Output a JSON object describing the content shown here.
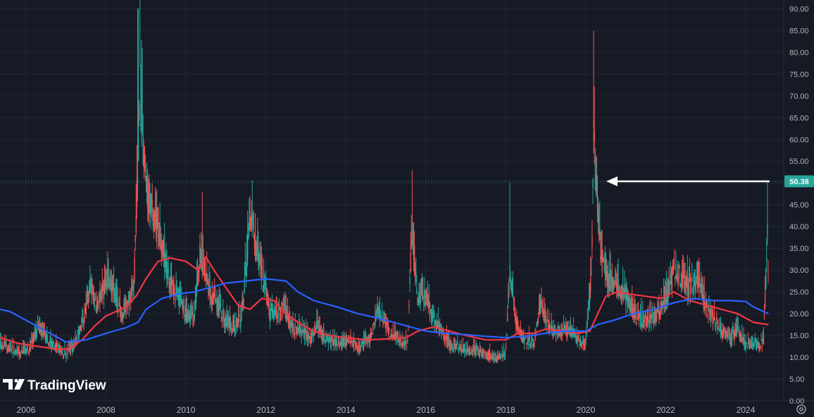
{
  "chart_data": {
    "type": "candlestick",
    "x_ticks": [
      "2006",
      "2008",
      "2010",
      "2012",
      "2014",
      "2016",
      "2018",
      "2020",
      "2022",
      "2024"
    ],
    "y_ticks": [
      "0.00",
      "5.00",
      "10.00",
      "15.00",
      "20.00",
      "25.00",
      "30.00",
      "35.00",
      "40.00",
      "45.00",
      "50.00",
      "55.00",
      "60.00",
      "65.00",
      "70.00",
      "75.00",
      "80.00",
      "85.00",
      "90.00"
    ],
    "ylim": [
      0,
      92
    ],
    "xlim": [
      2005.35,
      2024.95
    ],
    "last_price": 50.38,
    "last_price_label": "50.38",
    "colors": {
      "background": "#161a25",
      "grid": "#232734",
      "up": "#26a69a",
      "down": "#ef5350",
      "ma_fast": "#f23645",
      "ma_slow": "#2962ff",
      "price_label": "#26a69a",
      "arrow": "#ffffff"
    },
    "price_path": [
      [
        2005.35,
        13
      ],
      [
        2005.6,
        12
      ],
      [
        2005.8,
        11
      ],
      [
        2006.1,
        12
      ],
      [
        2006.35,
        17
      ],
      [
        2006.5,
        14
      ],
      [
        2006.8,
        12
      ],
      [
        2007.0,
        10.5
      ],
      [
        2007.15,
        12
      ],
      [
        2007.3,
        15
      ],
      [
        2007.45,
        19
      ],
      [
        2007.6,
        26
      ],
      [
        2007.75,
        22
      ],
      [
        2007.9,
        24
      ],
      [
        2008.05,
        29
      ],
      [
        2008.2,
        25
      ],
      [
        2008.4,
        20
      ],
      [
        2008.55,
        22
      ],
      [
        2008.7,
        26
      ],
      [
        2008.8,
        55
      ],
      [
        2008.85,
        78
      ],
      [
        2008.92,
        60
      ],
      [
        2009.0,
        50
      ],
      [
        2009.1,
        45
      ],
      [
        2009.25,
        42
      ],
      [
        2009.45,
        33
      ],
      [
        2009.6,
        27
      ],
      [
        2009.8,
        24
      ],
      [
        2010.0,
        20
      ],
      [
        2010.2,
        19
      ],
      [
        2010.35,
        34
      ],
      [
        2010.45,
        30
      ],
      [
        2010.6,
        24
      ],
      [
        2010.8,
        22
      ],
      [
        2011.0,
        18
      ],
      [
        2011.2,
        17
      ],
      [
        2011.4,
        19
      ],
      [
        2011.6,
        42
      ],
      [
        2011.75,
        36
      ],
      [
        2011.9,
        30
      ],
      [
        2012.1,
        20
      ],
      [
        2012.3,
        19
      ],
      [
        2012.45,
        21
      ],
      [
        2012.7,
        16
      ],
      [
        2012.9,
        16
      ],
      [
        2013.1,
        14
      ],
      [
        2013.3,
        17
      ],
      [
        2013.5,
        14
      ],
      [
        2013.8,
        13
      ],
      [
        2014.1,
        14
      ],
      [
        2014.3,
        12
      ],
      [
        2014.6,
        14
      ],
      [
        2014.8,
        21
      ],
      [
        2015.0,
        17
      ],
      [
        2015.3,
        14
      ],
      [
        2015.55,
        13
      ],
      [
        2015.65,
        40
      ],
      [
        2015.8,
        24
      ],
      [
        2016.0,
        24
      ],
      [
        2016.15,
        19
      ],
      [
        2016.4,
        16
      ],
      [
        2016.6,
        13
      ],
      [
        2016.9,
        12
      ],
      [
        2017.2,
        11.5
      ],
      [
        2017.5,
        10.5
      ],
      [
        2017.8,
        10
      ],
      [
        2018.0,
        11
      ],
      [
        2018.1,
        30
      ],
      [
        2018.25,
        18
      ],
      [
        2018.45,
        14
      ],
      [
        2018.7,
        13
      ],
      [
        2018.85,
        22
      ],
      [
        2019.0,
        19
      ],
      [
        2019.2,
        15
      ],
      [
        2019.45,
        16
      ],
      [
        2019.65,
        16
      ],
      [
        2019.85,
        13
      ],
      [
        2020.0,
        13
      ],
      [
        2020.15,
        30
      ],
      [
        2020.2,
        65
      ],
      [
        2020.28,
        45
      ],
      [
        2020.4,
        32
      ],
      [
        2020.55,
        28
      ],
      [
        2020.75,
        27
      ],
      [
        2020.9,
        25
      ],
      [
        2021.1,
        22
      ],
      [
        2021.3,
        19
      ],
      [
        2021.55,
        18
      ],
      [
        2021.8,
        20
      ],
      [
        2022.0,
        23
      ],
      [
        2022.2,
        30
      ],
      [
        2022.4,
        28
      ],
      [
        2022.6,
        26
      ],
      [
        2022.8,
        28
      ],
      [
        2023.0,
        21
      ],
      [
        2023.2,
        19
      ],
      [
        2023.4,
        16
      ],
      [
        2023.6,
        14
      ],
      [
        2023.8,
        16
      ],
      [
        2024.0,
        13
      ],
      [
        2024.2,
        13
      ],
      [
        2024.35,
        12.5
      ],
      [
        2024.45,
        14
      ],
      [
        2024.5,
        27
      ],
      [
        2024.54,
        40
      ],
      [
        2024.57,
        22
      ]
    ],
    "series": [
      {
        "type": "ma",
        "color": "#f23645",
        "points": [
          [
            2005.35,
            14.5
          ],
          [
            2005.8,
            13.2
          ],
          [
            2006.3,
            12.5
          ],
          [
            2006.8,
            11.8
          ],
          [
            2007.1,
            12
          ],
          [
            2007.4,
            14
          ],
          [
            2007.7,
            17
          ],
          [
            2008.0,
            19.5
          ],
          [
            2008.5,
            21.5
          ],
          [
            2008.75,
            24
          ],
          [
            2009.0,
            28
          ],
          [
            2009.3,
            32
          ],
          [
            2009.6,
            32.8
          ],
          [
            2010.0,
            32
          ],
          [
            2010.3,
            30
          ],
          [
            2010.5,
            33
          ],
          [
            2010.7,
            30
          ],
          [
            2011.0,
            26
          ],
          [
            2011.3,
            22
          ],
          [
            2011.6,
            21
          ],
          [
            2011.9,
            23.5
          ],
          [
            2012.2,
            23
          ],
          [
            2012.5,
            20
          ],
          [
            2012.8,
            18
          ],
          [
            2013.2,
            16
          ],
          [
            2013.6,
            15
          ],
          [
            2014.0,
            14.5
          ],
          [
            2014.5,
            14
          ],
          [
            2015.0,
            14.2
          ],
          [
            2015.5,
            14.5
          ],
          [
            2015.8,
            16
          ],
          [
            2016.2,
            17
          ],
          [
            2016.6,
            16
          ],
          [
            2017.0,
            15
          ],
          [
            2017.5,
            14
          ],
          [
            2018.0,
            14
          ],
          [
            2018.3,
            15.5
          ],
          [
            2018.7,
            15.5
          ],
          [
            2019.0,
            16.5
          ],
          [
            2019.4,
            16
          ],
          [
            2019.8,
            15.5
          ],
          [
            2020.1,
            16
          ],
          [
            2020.3,
            20
          ],
          [
            2020.5,
            24
          ],
          [
            2020.8,
            25
          ],
          [
            2021.1,
            24.5
          ],
          [
            2021.5,
            24
          ],
          [
            2021.9,
            23.5
          ],
          [
            2022.2,
            25
          ],
          [
            2022.6,
            23
          ],
          [
            2023.0,
            22
          ],
          [
            2023.4,
            21
          ],
          [
            2023.8,
            20
          ],
          [
            2024.2,
            18
          ],
          [
            2024.57,
            17.5
          ]
        ]
      },
      {
        "type": "ma",
        "color": "#2962ff",
        "points": [
          [
            2005.35,
            21
          ],
          [
            2005.6,
            20.5
          ],
          [
            2006.0,
            18.5
          ],
          [
            2006.5,
            16
          ],
          [
            2007.0,
            13.5
          ],
          [
            2007.5,
            14
          ],
          [
            2008.0,
            15.5
          ],
          [
            2008.5,
            16.8
          ],
          [
            2008.8,
            18
          ],
          [
            2009.0,
            21
          ],
          [
            2009.4,
            23.5
          ],
          [
            2009.8,
            24.5
          ],
          [
            2010.2,
            25
          ],
          [
            2010.6,
            26
          ],
          [
            2011.0,
            27
          ],
          [
            2011.5,
            27.5
          ],
          [
            2012.0,
            28
          ],
          [
            2012.5,
            27.5
          ],
          [
            2012.8,
            25
          ],
          [
            2013.2,
            23
          ],
          [
            2013.8,
            21.5
          ],
          [
            2014.3,
            20
          ],
          [
            2014.8,
            19
          ],
          [
            2015.2,
            18
          ],
          [
            2015.6,
            17
          ],
          [
            2016.0,
            16
          ],
          [
            2016.5,
            15.5
          ],
          [
            2017.0,
            15.2
          ],
          [
            2017.5,
            14.8
          ],
          [
            2018.0,
            14.5
          ],
          [
            2018.5,
            14.8
          ],
          [
            2019.0,
            15.5
          ],
          [
            2019.5,
            16
          ],
          [
            2020.0,
            16
          ],
          [
            2020.3,
            17.5
          ],
          [
            2020.7,
            18.5
          ],
          [
            2021.2,
            20
          ],
          [
            2021.7,
            21
          ],
          [
            2022.2,
            22.5
          ],
          [
            2022.7,
            23.5
          ],
          [
            2023.2,
            23
          ],
          [
            2023.6,
            23
          ],
          [
            2024.0,
            22.8
          ],
          [
            2024.2,
            21.5
          ],
          [
            2024.57,
            20
          ]
        ]
      }
    ],
    "spikes": [
      [
        2008.8,
        90
      ],
      [
        2008.9,
        81
      ],
      [
        2010.4,
        48
      ],
      [
        2011.6,
        47
      ],
      [
        2015.65,
        53
      ],
      [
        2018.1,
        50
      ],
      [
        2020.2,
        85
      ],
      [
        2024.54,
        50.38
      ]
    ]
  },
  "logo": {
    "text": "TradingView"
  }
}
